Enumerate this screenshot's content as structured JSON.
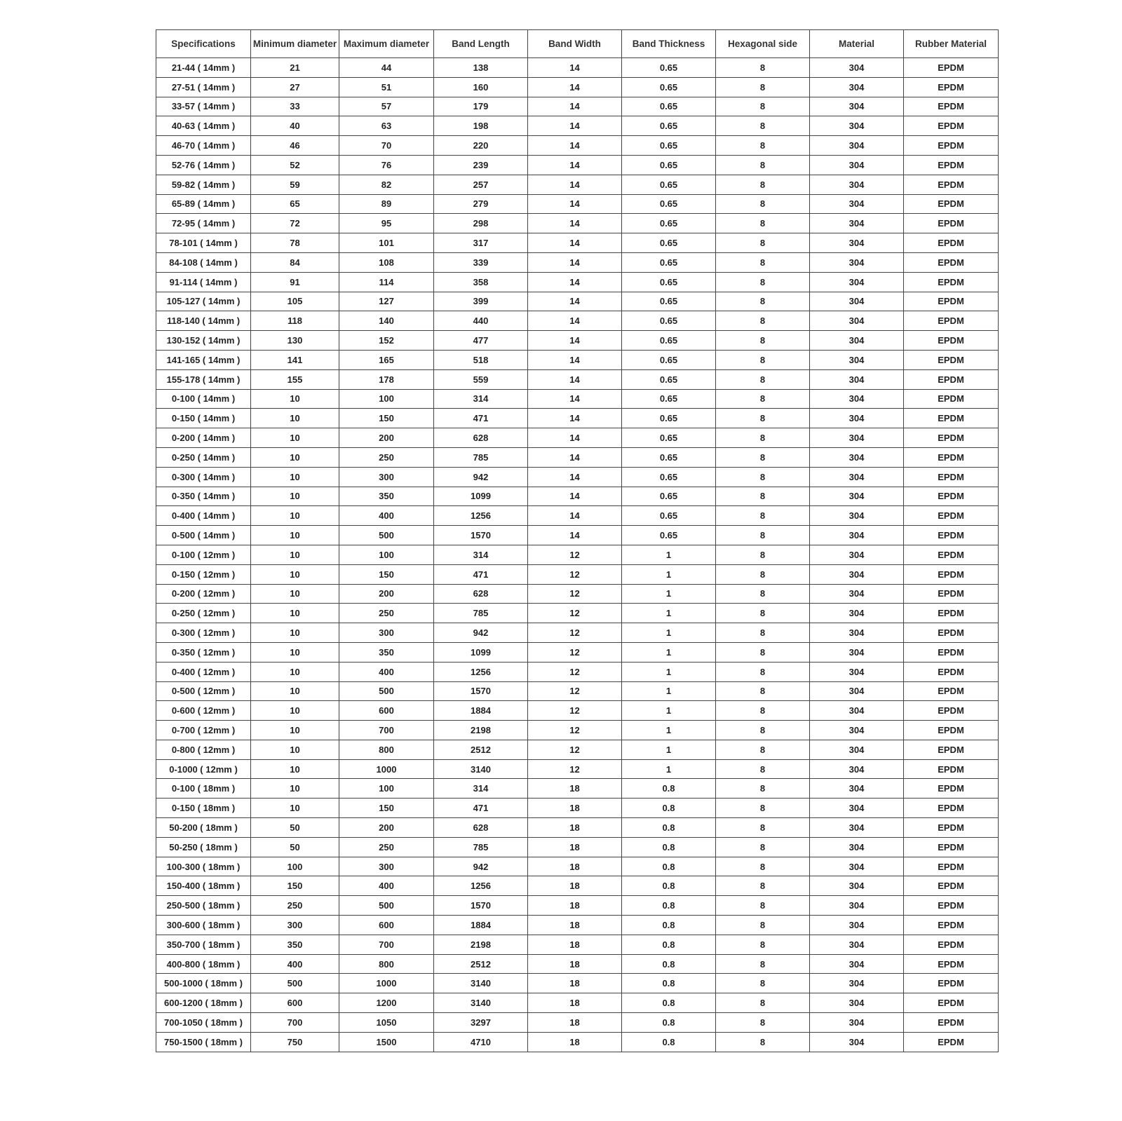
{
  "table": {
    "headers": [
      "Specifications",
      "Minimum diameter",
      "Maximum diameter",
      "Band Length",
      "Band Width",
      "Band Thickness",
      "Hexagonal side",
      "Material",
      "Rubber Material"
    ],
    "rows": [
      [
        "21-44 ( 14mm )",
        "21",
        "44",
        "138",
        "14",
        "0.65",
        "8",
        "304",
        "EPDM"
      ],
      [
        "27-51 ( 14mm )",
        "27",
        "51",
        "160",
        "14",
        "0.65",
        "8",
        "304",
        "EPDM"
      ],
      [
        "33-57 ( 14mm )",
        "33",
        "57",
        "179",
        "14",
        "0.65",
        "8",
        "304",
        "EPDM"
      ],
      [
        "40-63 ( 14mm )",
        "40",
        "63",
        "198",
        "14",
        "0.65",
        "8",
        "304",
        "EPDM"
      ],
      [
        "46-70 ( 14mm )",
        "46",
        "70",
        "220",
        "14",
        "0.65",
        "8",
        "304",
        "EPDM"
      ],
      [
        "52-76 ( 14mm )",
        "52",
        "76",
        "239",
        "14",
        "0.65",
        "8",
        "304",
        "EPDM"
      ],
      [
        "59-82 ( 14mm )",
        "59",
        "82",
        "257",
        "14",
        "0.65",
        "8",
        "304",
        "EPDM"
      ],
      [
        "65-89 ( 14mm )",
        "65",
        "89",
        "279",
        "14",
        "0.65",
        "8",
        "304",
        "EPDM"
      ],
      [
        "72-95 ( 14mm )",
        "72",
        "95",
        "298",
        "14",
        "0.65",
        "8",
        "304",
        "EPDM"
      ],
      [
        "78-101 ( 14mm )",
        "78",
        "101",
        "317",
        "14",
        "0.65",
        "8",
        "304",
        "EPDM"
      ],
      [
        "84-108 ( 14mm )",
        "84",
        "108",
        "339",
        "14",
        "0.65",
        "8",
        "304",
        "EPDM"
      ],
      [
        "91-114 ( 14mm )",
        "91",
        "114",
        "358",
        "14",
        "0.65",
        "8",
        "304",
        "EPDM"
      ],
      [
        "105-127 ( 14mm )",
        "105",
        "127",
        "399",
        "14",
        "0.65",
        "8",
        "304",
        "EPDM"
      ],
      [
        "118-140 ( 14mm )",
        "118",
        "140",
        "440",
        "14",
        "0.65",
        "8",
        "304",
        "EPDM"
      ],
      [
        "130-152 ( 14mm )",
        "130",
        "152",
        "477",
        "14",
        "0.65",
        "8",
        "304",
        "EPDM"
      ],
      [
        "141-165 ( 14mm )",
        "141",
        "165",
        "518",
        "14",
        "0.65",
        "8",
        "304",
        "EPDM"
      ],
      [
        "155-178 ( 14mm )",
        "155",
        "178",
        "559",
        "14",
        "0.65",
        "8",
        "304",
        "EPDM"
      ],
      [
        "0-100 ( 14mm )",
        "10",
        "100",
        "314",
        "14",
        "0.65",
        "8",
        "304",
        "EPDM"
      ],
      [
        "0-150 ( 14mm )",
        "10",
        "150",
        "471",
        "14",
        "0.65",
        "8",
        "304",
        "EPDM"
      ],
      [
        "0-200 ( 14mm )",
        "10",
        "200",
        "628",
        "14",
        "0.65",
        "8",
        "304",
        "EPDM"
      ],
      [
        "0-250 ( 14mm )",
        "10",
        "250",
        "785",
        "14",
        "0.65",
        "8",
        "304",
        "EPDM"
      ],
      [
        "0-300 ( 14mm )",
        "10",
        "300",
        "942",
        "14",
        "0.65",
        "8",
        "304",
        "EPDM"
      ],
      [
        "0-350 ( 14mm )",
        "10",
        "350",
        "1099",
        "14",
        "0.65",
        "8",
        "304",
        "EPDM"
      ],
      [
        "0-400 ( 14mm )",
        "10",
        "400",
        "1256",
        "14",
        "0.65",
        "8",
        "304",
        "EPDM"
      ],
      [
        "0-500 ( 14mm )",
        "10",
        "500",
        "1570",
        "14",
        "0.65",
        "8",
        "304",
        "EPDM"
      ],
      [
        "0-100 ( 12mm )",
        "10",
        "100",
        "314",
        "12",
        "1",
        "8",
        "304",
        "EPDM"
      ],
      [
        "0-150 ( 12mm )",
        "10",
        "150",
        "471",
        "12",
        "1",
        "8",
        "304",
        "EPDM"
      ],
      [
        "0-200 ( 12mm )",
        "10",
        "200",
        "628",
        "12",
        "1",
        "8",
        "304",
        "EPDM"
      ],
      [
        "0-250 ( 12mm )",
        "10",
        "250",
        "785",
        "12",
        "1",
        "8",
        "304",
        "EPDM"
      ],
      [
        "0-300 ( 12mm )",
        "10",
        "300",
        "942",
        "12",
        "1",
        "8",
        "304",
        "EPDM"
      ],
      [
        "0-350 ( 12mm )",
        "10",
        "350",
        "1099",
        "12",
        "1",
        "8",
        "304",
        "EPDM"
      ],
      [
        "0-400 ( 12mm )",
        "10",
        "400",
        "1256",
        "12",
        "1",
        "8",
        "304",
        "EPDM"
      ],
      [
        "0-500 ( 12mm )",
        "10",
        "500",
        "1570",
        "12",
        "1",
        "8",
        "304",
        "EPDM"
      ],
      [
        "0-600 ( 12mm )",
        "10",
        "600",
        "1884",
        "12",
        "1",
        "8",
        "304",
        "EPDM"
      ],
      [
        "0-700 ( 12mm )",
        "10",
        "700",
        "2198",
        "12",
        "1",
        "8",
        "304",
        "EPDM"
      ],
      [
        "0-800 ( 12mm )",
        "10",
        "800",
        "2512",
        "12",
        "1",
        "8",
        "304",
        "EPDM"
      ],
      [
        "0-1000 ( 12mm )",
        "10",
        "1000",
        "3140",
        "12",
        "1",
        "8",
        "304",
        "EPDM"
      ],
      [
        "0-100 ( 18mm )",
        "10",
        "100",
        "314",
        "18",
        "0.8",
        "8",
        "304",
        "EPDM"
      ],
      [
        "0-150 ( 18mm )",
        "10",
        "150",
        "471",
        "18",
        "0.8",
        "8",
        "304",
        "EPDM"
      ],
      [
        "50-200 ( 18mm )",
        "50",
        "200",
        "628",
        "18",
        "0.8",
        "8",
        "304",
        "EPDM"
      ],
      [
        "50-250 ( 18mm )",
        "50",
        "250",
        "785",
        "18",
        "0.8",
        "8",
        "304",
        "EPDM"
      ],
      [
        "100-300 ( 18mm )",
        "100",
        "300",
        "942",
        "18",
        "0.8",
        "8",
        "304",
        "EPDM"
      ],
      [
        "150-400 ( 18mm )",
        "150",
        "400",
        "1256",
        "18",
        "0.8",
        "8",
        "304",
        "EPDM"
      ],
      [
        "250-500 ( 18mm )",
        "250",
        "500",
        "1570",
        "18",
        "0.8",
        "8",
        "304",
        "EPDM"
      ],
      [
        "300-600 ( 18mm )",
        "300",
        "600",
        "1884",
        "18",
        "0.8",
        "8",
        "304",
        "EPDM"
      ],
      [
        "350-700 ( 18mm )",
        "350",
        "700",
        "2198",
        "18",
        "0.8",
        "8",
        "304",
        "EPDM"
      ],
      [
        "400-800 ( 18mm )",
        "400",
        "800",
        "2512",
        "18",
        "0.8",
        "8",
        "304",
        "EPDM"
      ],
      [
        "500-1000 ( 18mm )",
        "500",
        "1000",
        "3140",
        "18",
        "0.8",
        "8",
        "304",
        "EPDM"
      ],
      [
        "600-1200 ( 18mm )",
        "600",
        "1200",
        "3140",
        "18",
        "0.8",
        "8",
        "304",
        "EPDM"
      ],
      [
        "700-1050 ( 18mm )",
        "700",
        "1050",
        "3297",
        "18",
        "0.8",
        "8",
        "304",
        "EPDM"
      ],
      [
        "750-1500 ( 18mm )",
        "750",
        "1500",
        "4710",
        "18",
        "0.8",
        "8",
        "304",
        "EPDM"
      ]
    ]
  }
}
